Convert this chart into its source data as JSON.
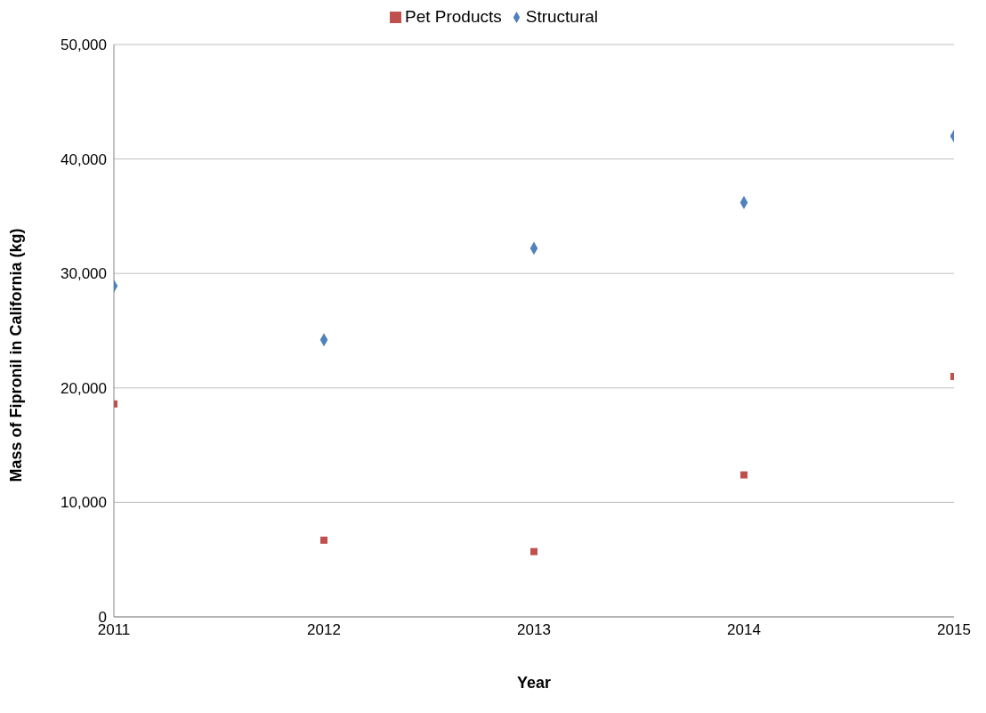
{
  "chart_data": {
    "type": "scatter",
    "xlabel": "Year",
    "ylabel": "Mass of Fipronil in California (kg)",
    "x": [
      2011,
      2012,
      2013,
      2014,
      2015
    ],
    "series": [
      {
        "name": "Structural",
        "color": "#4f81bd",
        "marker": "diamond",
        "values": [
          28900,
          24200,
          32200,
          36200,
          42000
        ]
      },
      {
        "name": "Pet Products",
        "color": "#c0504d",
        "marker": "square",
        "values": [
          18600,
          6700,
          5700,
          12400,
          21000
        ]
      }
    ],
    "xlim": [
      2011,
      2015
    ],
    "xticks": [
      2011,
      2012,
      2013,
      2014,
      2015
    ],
    "ylim": [
      0,
      50000
    ],
    "yticks": [
      0,
      {
        "value": 10000,
        "label": "10,000"
      },
      {
        "value": 20000,
        "label": "20,000"
      },
      {
        "value": 30000,
        "label": "30,000"
      },
      {
        "value": 40000,
        "label": "40,000"
      },
      {
        "value": 50000,
        "label": "50,000"
      }
    ],
    "grid": "y",
    "legend": "top"
  }
}
